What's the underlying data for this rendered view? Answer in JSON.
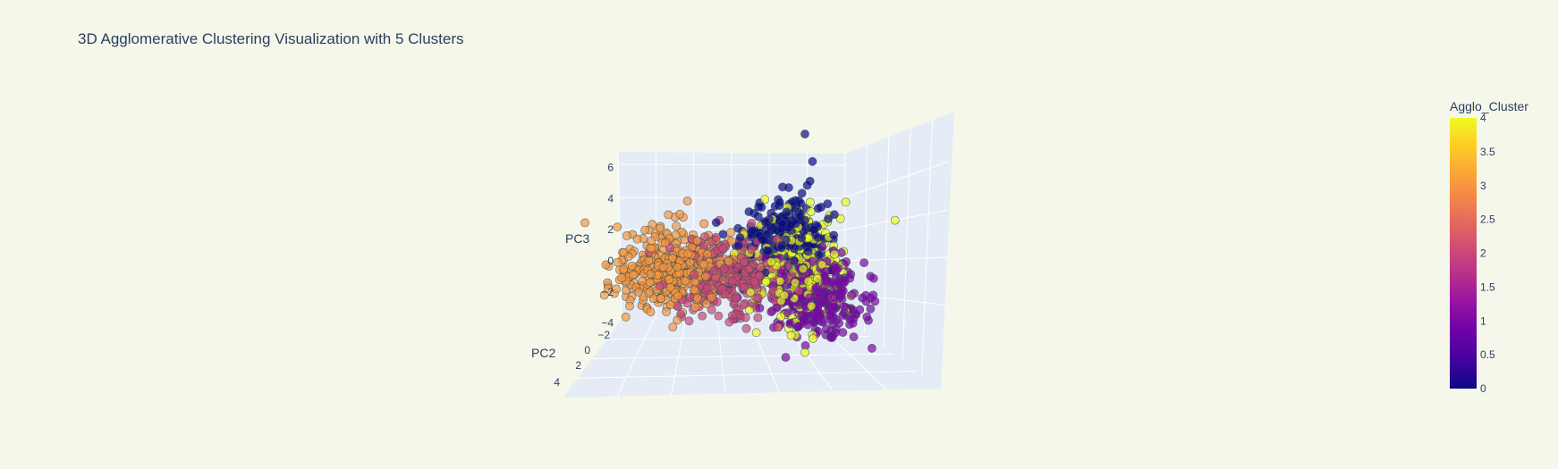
{
  "chart_data": {
    "type": "scatter3d",
    "title": "3D Agglomerative Clustering Visualization with 5 Clusters",
    "axes": {
      "x": {
        "label": "",
        "ticks": []
      },
      "y": {
        "label": "PC2",
        "ticks": [
          "−2",
          "0",
          "2",
          "4"
        ],
        "values": [
          -2,
          0,
          2,
          4
        ]
      },
      "z": {
        "label": "PC3",
        "ticks": [
          "−4",
          "−2",
          "0",
          "2",
          "4",
          "6"
        ],
        "values": [
          -4,
          -2,
          0,
          2,
          4,
          6
        ]
      }
    },
    "grid": true,
    "colorbar": {
      "title": "Agglo_Cluster",
      "range": [
        0,
        4
      ],
      "ticks": [
        "0",
        "0.5",
        "1",
        "1.5",
        "2",
        "2.5",
        "3",
        "3.5",
        "4"
      ],
      "colorscale": [
        "#0d0887",
        "#46039f",
        "#7201a8",
        "#9c179e",
        "#bd3786",
        "#d8576b",
        "#ed7953",
        "#fb9f3a",
        "#fdca26",
        "#f0f921"
      ]
    },
    "marker": {
      "opacity": 0.7,
      "line_color": "#2f4f4f"
    },
    "clusters": [
      {
        "cluster": 0,
        "color": "#0d0887",
        "center": {
          "PC1": 3.2,
          "PC2": -1,
          "PC3": 1.0
        },
        "spread": {
          "PC1": 0.9,
          "PC2": 1,
          "PC3": 0.9
        },
        "count": 220
      },
      {
        "cluster": 1,
        "color": "#7e03a8",
        "center": {
          "PC1": 4.3,
          "PC2": 0.5,
          "PC3": -1.6
        },
        "spread": {
          "PC1": 1.0,
          "PC2": 1,
          "PC3": 0.9
        },
        "count": 320
      },
      {
        "cluster": 2,
        "color": "#cc4778",
        "center": {
          "PC1": 1.0,
          "PC2": 0,
          "PC3": -0.8
        },
        "spread": {
          "PC1": 1.2,
          "PC2": 1,
          "PC3": 0.9
        },
        "count": 330
      },
      {
        "cluster": 3,
        "color": "#f89540",
        "center": {
          "PC1": -1.4,
          "PC2": 0,
          "PC3": -0.4
        },
        "spread": {
          "PC1": 1.1,
          "PC2": 1,
          "PC3": 0.9
        },
        "count": 420
      },
      {
        "cluster": 4,
        "color": "#f0f921",
        "center": {
          "PC1": 3.6,
          "PC2": 0,
          "PC3": -0.2
        },
        "spread": {
          "PC1": 0.9,
          "PC2": 1,
          "PC3": 1.3
        },
        "count": 260
      }
    ],
    "outliers": [
      {
        "cluster": 0,
        "PC1": 4.0,
        "PC2": -1,
        "PC3": 6.8
      },
      {
        "cluster": 0,
        "PC1": 4.3,
        "PC2": -1,
        "PC3": 4.4
      },
      {
        "cluster": 4,
        "PC1": 7.6,
        "PC2": -1,
        "PC3": 1.7
      }
    ]
  }
}
